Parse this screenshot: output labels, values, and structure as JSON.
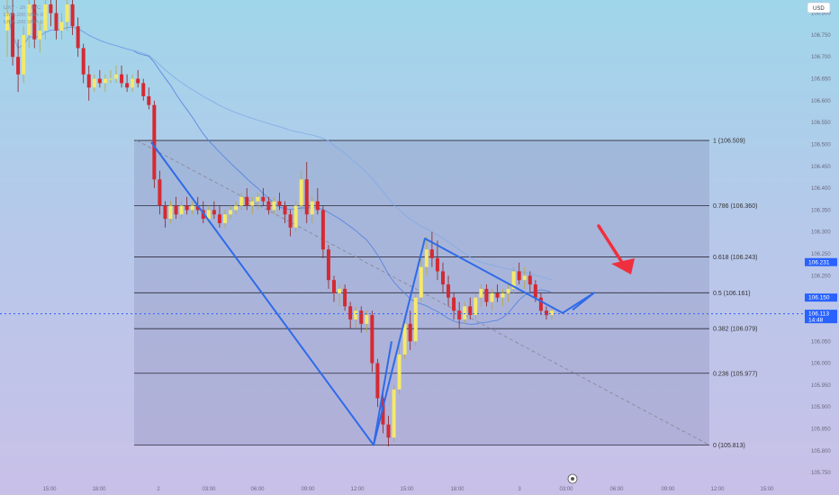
{
  "chart_data": {
    "type": "candlestick",
    "currency": "USD",
    "legend": [
      "DXY · 1h · TVC",
      "EMA 200 SMA 9",
      "EMA 200 SMA 5"
    ],
    "y_axis": {
      "ylim": [
        105.74,
        106.83
      ],
      "ticks": [
        "106.800",
        "106.750",
        "106.700",
        "106.650",
        "106.600",
        "106.550",
        "106.500",
        "106.450",
        "106.400",
        "106.350",
        "106.300",
        "106.250",
        "106.200",
        "106.150",
        "106.100",
        "106.050",
        "106.000",
        "105.950",
        "105.900",
        "105.850",
        "105.800",
        "105.750"
      ]
    },
    "x_axis": {
      "ticks": [
        "15:00",
        "18:00",
        "2",
        "03:00",
        "06:00",
        "09:00",
        "12:00",
        "15:00",
        "18:00",
        "3",
        "03:00",
        "06:00",
        "09:00",
        "12:00",
        "15:00"
      ]
    },
    "fibonacci": [
      {
        "label": "1 (106.509)",
        "value": 106.509
      },
      {
        "label": "0.786 (106.360)",
        "value": 106.36
      },
      {
        "label": "0.618 (106.243)",
        "value": 106.243
      },
      {
        "label": "0.5 (106.161)",
        "value": 106.161
      },
      {
        "label": "0.382 (106.079)",
        "value": 106.079
      },
      {
        "label": "0.236 (105.977)",
        "value": 105.977
      },
      {
        "label": "0 (105.813)",
        "value": 105.813
      }
    ],
    "price_tags": [
      {
        "label": "106.231",
        "value": 106.231,
        "color": "#2962ff"
      },
      {
        "label": "106.150",
        "value": 106.15,
        "color": "#2962ff"
      },
      {
        "label": "106.113",
        "sub": "14:48",
        "value": 106.113,
        "color": "#2962ff"
      }
    ],
    "current_price": 106.113,
    "colors": {
      "up": "#f5e96a",
      "down": "#d42a32",
      "zigzag": "#2f6be8",
      "arrow": "#f02f3e",
      "ma_line": "#4d7ee0",
      "ma_line2": "#7fa9e8",
      "fib_box": "rgba(120,125,170,0.25)"
    },
    "candles_ohlc": [
      [
        106.76,
        106.84,
        106.7,
        106.8
      ],
      [
        106.8,
        106.83,
        106.68,
        106.7
      ],
      [
        106.7,
        106.74,
        106.62,
        106.66
      ],
      [
        106.66,
        106.77,
        106.64,
        106.75
      ],
      [
        106.75,
        106.84,
        106.72,
        106.82
      ],
      [
        106.82,
        106.84,
        106.72,
        106.74
      ],
      [
        106.74,
        106.78,
        106.71,
        106.76
      ],
      [
        106.76,
        106.84,
        106.74,
        106.82
      ],
      [
        106.82,
        106.84,
        106.77,
        106.8
      ],
      [
        106.8,
        106.84,
        106.74,
        106.76
      ],
      [
        106.76,
        106.8,
        106.74,
        106.78
      ],
      [
        106.78,
        106.84,
        106.76,
        106.82
      ],
      [
        106.82,
        106.84,
        106.75,
        106.77
      ],
      [
        106.77,
        106.79,
        106.7,
        106.72
      ],
      [
        106.72,
        106.73,
        106.64,
        106.66
      ],
      [
        106.66,
        106.68,
        106.6,
        106.63
      ],
      [
        106.63,
        106.66,
        106.62,
        106.65
      ],
      [
        106.65,
        106.67,
        106.63,
        106.64
      ],
      [
        106.64,
        106.66,
        106.62,
        106.65
      ],
      [
        106.65,
        106.67,
        106.64,
        106.65
      ],
      [
        106.65,
        106.68,
        106.64,
        106.66
      ],
      [
        106.66,
        106.68,
        106.63,
        106.64
      ],
      [
        106.64,
        106.66,
        106.62,
        106.63
      ],
      [
        106.63,
        106.66,
        106.62,
        106.65
      ],
      [
        106.65,
        106.67,
        106.63,
        106.64
      ],
      [
        106.64,
        106.65,
        106.6,
        106.61
      ],
      [
        106.61,
        106.63,
        106.58,
        106.59
      ],
      [
        106.59,
        106.6,
        106.4,
        106.42
      ],
      [
        106.42,
        106.44,
        106.34,
        106.36
      ],
      [
        106.36,
        106.37,
        106.31,
        106.33
      ],
      [
        106.33,
        106.37,
        106.32,
        106.36
      ],
      [
        106.36,
        106.38,
        106.33,
        106.34
      ],
      [
        106.34,
        106.37,
        106.33,
        106.36
      ],
      [
        106.36,
        106.38,
        106.34,
        106.35
      ],
      [
        106.35,
        106.37,
        106.34,
        106.36
      ],
      [
        106.36,
        106.38,
        106.34,
        106.35
      ],
      [
        106.35,
        106.37,
        106.32,
        106.33
      ],
      [
        106.33,
        106.36,
        106.32,
        106.35
      ],
      [
        106.35,
        106.37,
        106.33,
        106.34
      ],
      [
        106.34,
        106.36,
        106.31,
        106.32
      ],
      [
        106.32,
        106.35,
        106.31,
        106.34
      ],
      [
        106.34,
        106.36,
        106.33,
        106.35
      ],
      [
        106.35,
        106.37,
        106.34,
        106.36
      ],
      [
        106.36,
        106.39,
        106.35,
        106.38
      ],
      [
        106.38,
        106.4,
        106.35,
        106.36
      ],
      [
        106.36,
        106.38,
        106.34,
        106.37
      ],
      [
        106.37,
        106.39,
        106.35,
        106.38
      ],
      [
        106.38,
        106.4,
        106.36,
        106.37
      ],
      [
        106.37,
        106.38,
        106.34,
        106.35
      ],
      [
        106.35,
        106.38,
        106.34,
        106.37
      ],
      [
        106.37,
        106.39,
        106.35,
        106.36
      ],
      [
        106.36,
        106.37,
        106.32,
        106.34
      ],
      [
        106.34,
        106.35,
        106.29,
        106.31
      ],
      [
        106.31,
        106.37,
        106.3,
        106.36
      ],
      [
        106.36,
        106.44,
        106.35,
        106.42
      ],
      [
        106.42,
        106.46,
        106.32,
        106.34
      ],
      [
        106.34,
        106.38,
        106.32,
        106.37
      ],
      [
        106.37,
        106.4,
        106.34,
        106.35
      ],
      [
        106.35,
        106.36,
        106.24,
        106.26
      ],
      [
        106.26,
        106.27,
        106.17,
        106.19
      ],
      [
        106.19,
        106.2,
        106.14,
        106.16
      ],
      [
        106.16,
        106.18,
        106.13,
        106.17
      ],
      [
        106.17,
        106.18,
        106.12,
        106.13
      ],
      [
        106.13,
        106.14,
        106.08,
        106.1
      ],
      [
        106.1,
        106.13,
        106.08,
        106.12
      ],
      [
        106.12,
        106.13,
        106.07,
        106.09
      ],
      [
        106.09,
        106.12,
        106.07,
        106.11
      ],
      [
        106.11,
        106.12,
        105.98,
        106.0
      ],
      [
        106.0,
        106.01,
        105.9,
        105.92
      ],
      [
        105.92,
        105.93,
        105.84,
        105.86
      ],
      [
        105.86,
        105.88,
        105.81,
        105.83
      ],
      [
        105.83,
        105.95,
        105.82,
        105.94
      ],
      [
        105.94,
        106.04,
        105.93,
        106.02
      ],
      [
        106.02,
        106.1,
        106.01,
        106.09
      ],
      [
        106.09,
        106.12,
        106.03,
        106.05
      ],
      [
        106.05,
        106.16,
        106.04,
        106.15
      ],
      [
        106.15,
        106.24,
        106.14,
        106.22
      ],
      [
        106.22,
        106.29,
        106.2,
        106.26
      ],
      [
        106.26,
        106.3,
        106.22,
        106.24
      ],
      [
        106.24,
        106.28,
        106.19,
        106.21
      ],
      [
        106.21,
        106.23,
        106.16,
        106.18
      ],
      [
        106.18,
        106.2,
        106.13,
        106.15
      ],
      [
        106.15,
        106.16,
        106.1,
        106.12
      ],
      [
        106.12,
        106.14,
        106.08,
        106.1
      ],
      [
        106.1,
        106.14,
        106.09,
        106.13
      ],
      [
        106.13,
        106.15,
        106.1,
        106.11
      ],
      [
        106.11,
        106.16,
        106.1,
        106.15
      ],
      [
        106.15,
        106.18,
        106.13,
        106.17
      ],
      [
        106.17,
        106.18,
        106.13,
        106.14
      ],
      [
        106.14,
        106.17,
        106.12,
        106.16
      ],
      [
        106.16,
        106.18,
        106.14,
        106.15
      ],
      [
        106.15,
        106.17,
        106.13,
        106.16
      ],
      [
        106.16,
        106.18,
        106.14,
        106.17
      ],
      [
        106.17,
        106.22,
        106.16,
        106.21
      ],
      [
        106.21,
        106.23,
        106.18,
        106.19
      ],
      [
        106.19,
        106.22,
        106.17,
        106.2
      ],
      [
        106.2,
        106.21,
        106.16,
        106.18
      ],
      [
        106.18,
        106.19,
        106.14,
        106.15
      ],
      [
        106.15,
        106.16,
        106.11,
        106.12
      ],
      [
        106.12,
        106.13,
        106.1,
        106.11
      ],
      [
        106.11,
        106.13,
        106.1,
        106.12
      ]
    ]
  }
}
